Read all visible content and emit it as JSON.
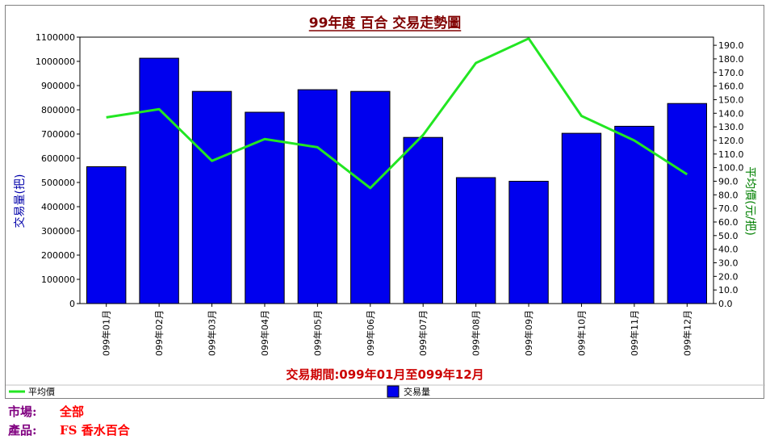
{
  "chart_data": {
    "type": "bar+line",
    "title": "99年度 百合 交易走勢圖",
    "categories": [
      "099年01月",
      "099年02月",
      "099年03月",
      "099年04月",
      "099年05月",
      "099年06月",
      "099年07月",
      "099年08月",
      "099年09月",
      "099年10月",
      "099年11月",
      "099年12月"
    ],
    "series": [
      {
        "name": "交易量",
        "type": "bar",
        "axis": "left",
        "color": "#0000ee",
        "values": [
          565000,
          1013000,
          876000,
          790000,
          883000,
          876000,
          686000,
          520000,
          505000,
          703000,
          732000,
          826000
        ]
      },
      {
        "name": "平均價",
        "type": "line",
        "axis": "right",
        "color": "#22e622",
        "values": [
          137.0,
          143.0,
          105.0,
          121.0,
          115.0,
          85.0,
          124.0,
          177.0,
          195.0,
          138.0,
          120.0,
          95.0
        ]
      }
    ],
    "ylabel_left": "交易量(把)",
    "ylabel_right": "平均價(元/把)",
    "ylim_left": [
      0,
      1100000
    ],
    "ylim_right": [
      0,
      196
    ],
    "yticks_left": [
      "0",
      "100000",
      "200000",
      "300000",
      "400000",
      "500000",
      "600000",
      "700000",
      "800000",
      "900000",
      "1000000",
      "1100000"
    ],
    "yticks_right": [
      "0.0",
      "10.0",
      "20.0",
      "30.0",
      "40.0",
      "50.0",
      "60.0",
      "70.0",
      "80.0",
      "90.0",
      "100.0",
      "110.0",
      "120.0",
      "130.0",
      "140.0",
      "150.0",
      "160.0",
      "170.0",
      "180.0",
      "190.0"
    ],
    "xlabel": "交易期間:099年01月至099年12月",
    "legend": [
      "平均價",
      "交易量"
    ],
    "grid": false,
    "legend_position": "bottom"
  },
  "info": {
    "market_label": "市場:",
    "market_value": "全部",
    "product_label": "產品:",
    "product_value": "FS 香水百合"
  },
  "colors": {
    "title": "#800000",
    "left_axis_label": "#0000aa",
    "right_axis_label": "#008000",
    "period_label": "#cc0000"
  }
}
